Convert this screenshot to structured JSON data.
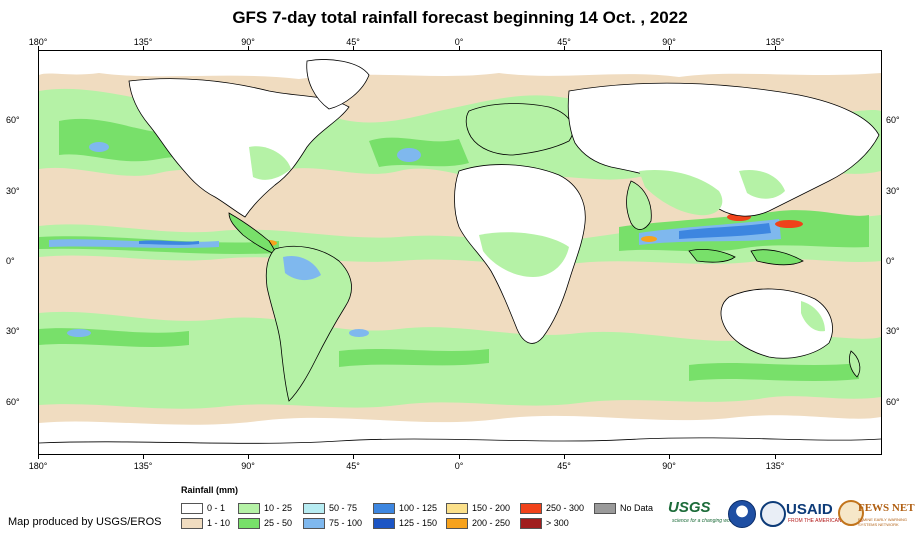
{
  "title": "GFS 7-day total rainfall forecast beginning 14 Oct. , 2022",
  "longitude_labels": [
    "180°",
    "135°",
    "90°",
    "45°",
    "0°",
    "45°",
    "90°",
    "135°"
  ],
  "latitude_labels": [
    "60°",
    "30°",
    "0°",
    "30°",
    "60°"
  ],
  "legend": {
    "title": "Rainfall (mm)",
    "items": [
      {
        "label": "0 - 1",
        "color": "#ffffff"
      },
      {
        "label": "1 - 10",
        "color": "#f0dcc0"
      },
      {
        "label": "10 - 25",
        "color": "#b5f2a6"
      },
      {
        "label": "25 - 50",
        "color": "#78e06a"
      },
      {
        "label": "50 - 75",
        "color": "#b7ecf2"
      },
      {
        "label": "75 - 100",
        "color": "#7fb8ee"
      },
      {
        "label": "100 - 125",
        "color": "#3d86e0"
      },
      {
        "label": "125 - 150",
        "color": "#1c55c4"
      },
      {
        "label": "150 - 200",
        "color": "#fbe08a"
      },
      {
        "label": "200 - 250",
        "color": "#f7a21c"
      },
      {
        "label": "250 - 300",
        "color": "#f0421a"
      },
      {
        "label": "> 300",
        "color": "#a01d1d"
      },
      {
        "label": "No Data",
        "color": "#9a9a9a"
      }
    ]
  },
  "credit": "Map produced by USGS/EROS",
  "logos": {
    "usgs": "USGS",
    "usgs_tagline": "science for a changing world",
    "usaid": "USAID",
    "usaid_tagline": "FROM THE AMERICAN PEOPLE",
    "fews": "FEWS NET",
    "fews_tagline": "FAMINE EARLY WARNING SYSTEMS NETWORK"
  }
}
